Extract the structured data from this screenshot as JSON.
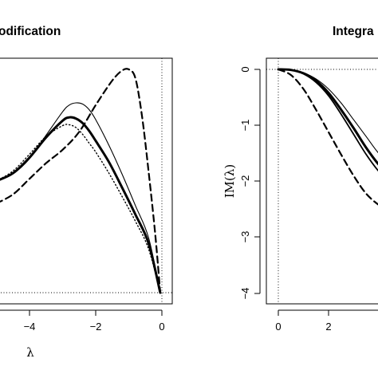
{
  "chart_data": [
    {
      "type": "line",
      "title": "odification",
      "xlabel": "λ",
      "ylabel": "",
      "xlim": [
        -5,
        0
      ],
      "grid": false,
      "legend": "none",
      "x_ticks": [
        "−4",
        "−2",
        "0"
      ],
      "reference_lines": [
        "vertical dotted at x = 0",
        "horizontal dotted at curve minimum"
      ],
      "series": [
        {
          "style": "thin solid",
          "x": [
            -5.0,
            -4.5,
            -4.0,
            -3.5,
            -3.0,
            -2.8,
            -2.6,
            -2.4,
            -2.2,
            -2.0,
            -1.6,
            -1.2,
            -0.8,
            -0.4,
            -0.05
          ],
          "values": [
            0.5,
            0.532,
            0.6,
            0.705,
            0.81,
            0.84,
            0.85,
            0.845,
            0.82,
            0.775,
            0.66,
            0.53,
            0.39,
            0.245,
            0.0
          ]
        },
        {
          "style": "thick solid",
          "x": [
            -5.0,
            -4.5,
            -4.0,
            -3.5,
            -3.0,
            -2.8,
            -2.6,
            -2.4,
            -2.2,
            -2.0,
            -1.6,
            -1.2,
            -0.8,
            -0.4,
            -0.05
          ],
          "values": [
            0.5,
            0.535,
            0.605,
            0.695,
            0.77,
            0.785,
            0.78,
            0.76,
            0.725,
            0.68,
            0.585,
            0.47,
            0.35,
            0.22,
            0.0
          ]
        },
        {
          "style": "dotted",
          "x": [
            -5.0,
            -4.5,
            -4.0,
            -3.5,
            -3.0,
            -2.8,
            -2.6,
            -2.4,
            -2.2,
            -2.0,
            -1.6,
            -1.2,
            -0.8,
            -0.4,
            -0.05
          ],
          "values": [
            0.5,
            0.545,
            0.62,
            0.7,
            0.748,
            0.752,
            0.74,
            0.71,
            0.67,
            0.63,
            0.535,
            0.43,
            0.32,
            0.195,
            0.0
          ]
        },
        {
          "style": "dashed",
          "x": [
            -5.0,
            -4.5,
            -4.0,
            -3.5,
            -3.0,
            -2.5,
            -2.0,
            -1.5,
            -1.2,
            -1.0,
            -0.8,
            -0.6,
            -0.4,
            -0.2,
            -0.05
          ],
          "values": [
            0.4,
            0.44,
            0.51,
            0.58,
            0.64,
            0.72,
            0.84,
            0.95,
            0.995,
            1.0,
            0.96,
            0.79,
            0.54,
            0.26,
            0.0
          ]
        }
      ]
    },
    {
      "type": "line",
      "title": "Integra",
      "xlabel": "",
      "ylabel": "IM(λ)",
      "xlim": [
        -0.1,
        5
      ],
      "ylim": [
        -4,
        0
      ],
      "grid": false,
      "legend": "none",
      "x_ticks": [
        "0",
        "2"
      ],
      "y_ticks": [
        "0",
        "−1",
        "−2",
        "−3",
        "−4"
      ],
      "reference_lines": [
        "vertical dotted at x = 0",
        "horizontal dotted at y = 0"
      ],
      "series": [
        {
          "style": "thin solid",
          "x": [
            0,
            0.5,
            1.0,
            1.5,
            2.0,
            2.5,
            3.0,
            3.5,
            4.0,
            4.5,
            5.0
          ],
          "values": [
            0,
            -0.01,
            -0.06,
            -0.17,
            -0.35,
            -0.6,
            -0.9,
            -1.2,
            -1.5,
            -1.7,
            -1.85
          ]
        },
        {
          "style": "thick solid",
          "x": [
            0,
            0.5,
            1.0,
            1.5,
            2.0,
            2.5,
            3.0,
            3.5,
            4.0,
            4.5,
            5.0
          ],
          "values": [
            0,
            -0.01,
            -0.07,
            -0.2,
            -0.42,
            -0.72,
            -1.05,
            -1.4,
            -1.7,
            -1.92,
            -2.05
          ]
        },
        {
          "style": "solid",
          "x": [
            0,
            0.5,
            1.0,
            1.5,
            2.0,
            2.5,
            3.0,
            3.5,
            4.0,
            4.5,
            5.0
          ],
          "values": [
            0,
            -0.01,
            -0.08,
            -0.23,
            -0.47,
            -0.8,
            -1.16,
            -1.52,
            -1.82,
            -2.02,
            -2.15
          ]
        },
        {
          "style": "dashed",
          "x": [
            0,
            0.5,
            1.0,
            1.5,
            2.0,
            2.5,
            3.0,
            3.5,
            4.0,
            4.5,
            5.0
          ],
          "values": [
            0,
            -0.1,
            -0.35,
            -0.72,
            -1.12,
            -1.52,
            -1.9,
            -2.22,
            -2.42,
            -2.55,
            -2.62
          ]
        }
      ]
    }
  ]
}
